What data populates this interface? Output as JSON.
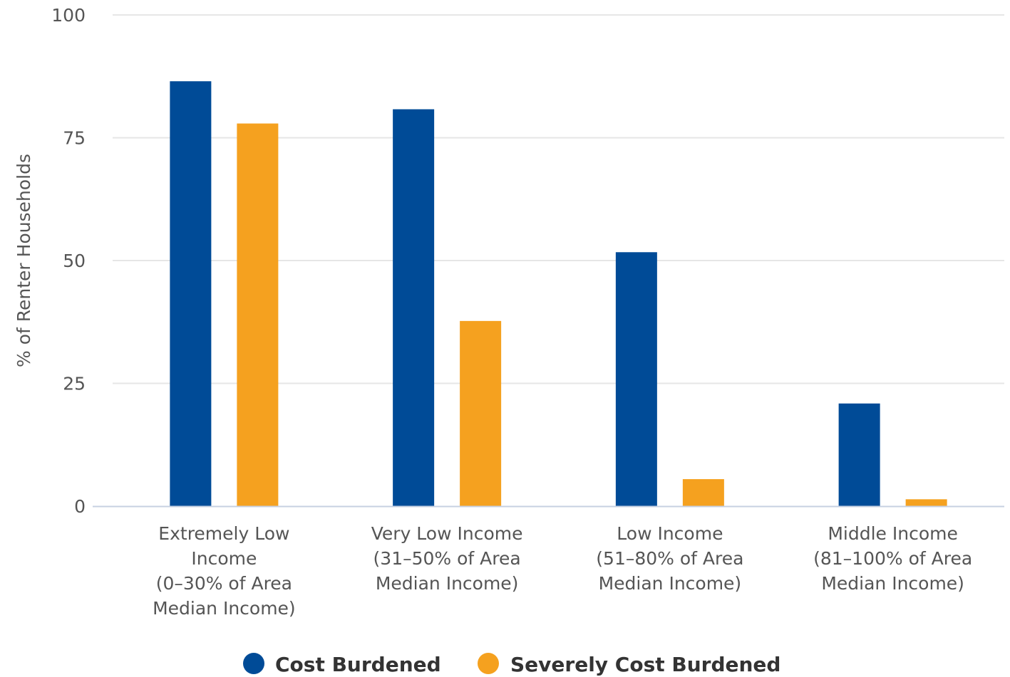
{
  "chart_data": {
    "type": "bar",
    "categories": [
      [
        "Extremely Low",
        "Income",
        "(0–30% of Area",
        "Median Income)"
      ],
      [
        "Very Low Income",
        "(31–50% of Area",
        "Median Income)"
      ],
      [
        "Low Income",
        "(51–80% of Area",
        "Median Income)"
      ],
      [
        "Middle Income",
        "(81–100% of Area",
        "Median Income)"
      ]
    ],
    "series": [
      {
        "name": "Cost Burdened",
        "color": "#004b97",
        "values": [
          86.5,
          80.8,
          51.7,
          20.9
        ]
      },
      {
        "name": "Severely Cost Burdened",
        "color": "#f5a11f",
        "values": [
          77.9,
          37.7,
          5.5,
          1.4
        ]
      }
    ],
    "ylabel": "% of Renter Households",
    "yticks": [
      "0",
      "25",
      "50",
      "75",
      "100"
    ],
    "ylim": [
      0,
      100
    ],
    "grid": true,
    "legend_position": "bottom"
  }
}
